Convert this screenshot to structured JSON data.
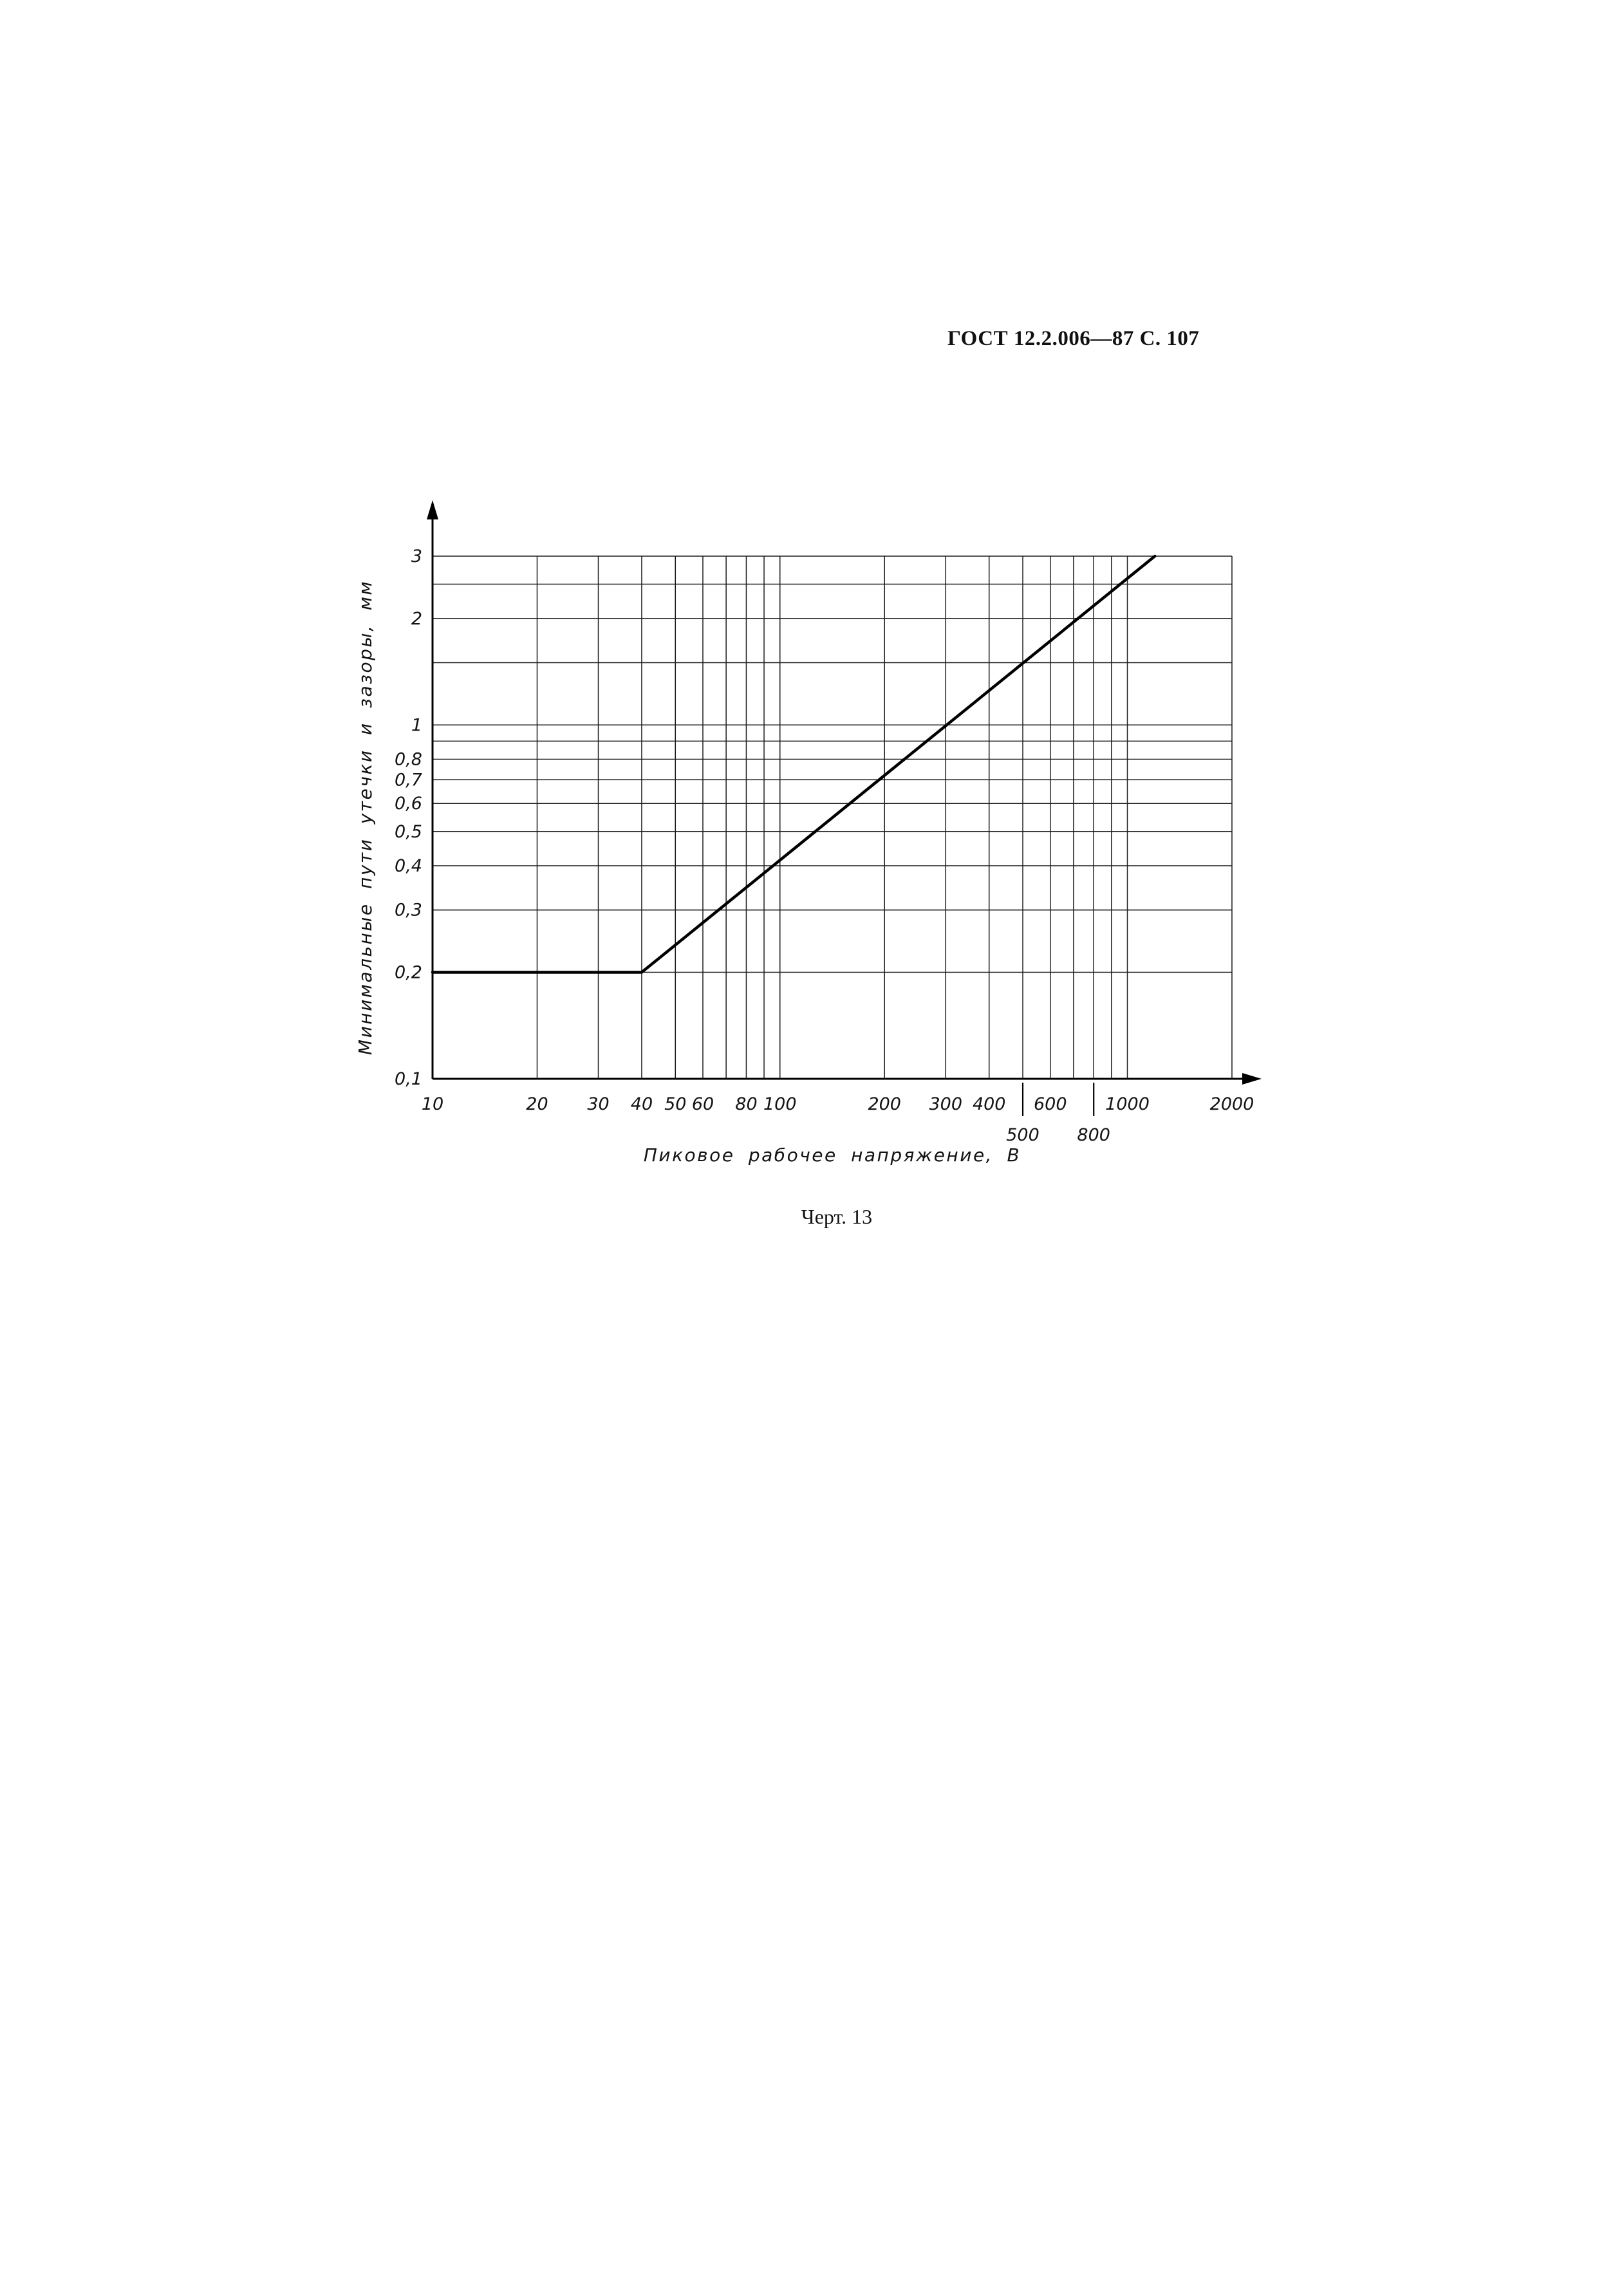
{
  "page": {
    "header": "ГОСТ 12.2.006—87 С. 107",
    "caption": "Черт. 13"
  },
  "chart_data": {
    "type": "line",
    "title": "",
    "xlabel": "Пиковое рабочее напряжение, В",
    "ylabel": "Минимальные пути утечки и зазоры, мм",
    "x_scale": "log",
    "y_scale": "log",
    "xlim": [
      10,
      2000
    ],
    "ylim": [
      0.1,
      3
    ],
    "grid": true,
    "legend": "none",
    "x_gridlines": [
      10,
      20,
      30,
      40,
      50,
      60,
      70,
      80,
      90,
      100,
      200,
      300,
      400,
      500,
      600,
      700,
      800,
      900,
      1000,
      2000
    ],
    "y_gridlines": [
      0.1,
      0.2,
      0.3,
      0.4,
      0.5,
      0.6,
      0.7,
      0.8,
      0.9,
      1,
      1.5,
      2,
      2.5,
      3
    ],
    "x_ticks": [
      {
        "value": 10,
        "label": "10",
        "row": 1,
        "leader": false
      },
      {
        "value": 20,
        "label": "20",
        "row": 1,
        "leader": false
      },
      {
        "value": 30,
        "label": "30",
        "row": 1,
        "leader": false
      },
      {
        "value": 40,
        "label": "40",
        "row": 1,
        "leader": false
      },
      {
        "value": 50,
        "label": "50",
        "row": 1,
        "leader": false
      },
      {
        "value": 60,
        "label": "60",
        "row": 1,
        "leader": false
      },
      {
        "value": 80,
        "label": "80",
        "row": 1,
        "leader": false
      },
      {
        "value": 100,
        "label": "100",
        "row": 1,
        "leader": false
      },
      {
        "value": 200,
        "label": "200",
        "row": 1,
        "leader": false
      },
      {
        "value": 300,
        "label": "300",
        "row": 1,
        "leader": false
      },
      {
        "value": 400,
        "label": "400",
        "row": 1,
        "leader": false
      },
      {
        "value": 500,
        "label": "500",
        "row": 2,
        "leader": true
      },
      {
        "value": 600,
        "label": "600",
        "row": 1,
        "leader": false
      },
      {
        "value": 800,
        "label": "800",
        "row": 2,
        "leader": true
      },
      {
        "value": 1000,
        "label": "1000",
        "row": 1,
        "leader": false
      },
      {
        "value": 2000,
        "label": "2000",
        "row": 1,
        "leader": false
      }
    ],
    "y_ticks": [
      {
        "value": 3,
        "label": "3"
      },
      {
        "value": 2,
        "label": "2"
      },
      {
        "value": 1,
        "label": "1"
      },
      {
        "value": 0.8,
        "label": "0,8"
      },
      {
        "value": 0.7,
        "label": "0,7"
      },
      {
        "value": 0.6,
        "label": "0,6"
      },
      {
        "value": 0.5,
        "label": "0,5"
      },
      {
        "value": 0.4,
        "label": "0,4"
      },
      {
        "value": 0.3,
        "label": "0,3"
      },
      {
        "value": 0.2,
        "label": "0,2"
      },
      {
        "value": 0.1,
        "label": "0,1"
      }
    ],
    "series": [
      {
        "points": [
          [
            10,
            0.2
          ],
          [
            40,
            0.2
          ],
          [
            1200,
            3
          ]
        ]
      }
    ]
  }
}
